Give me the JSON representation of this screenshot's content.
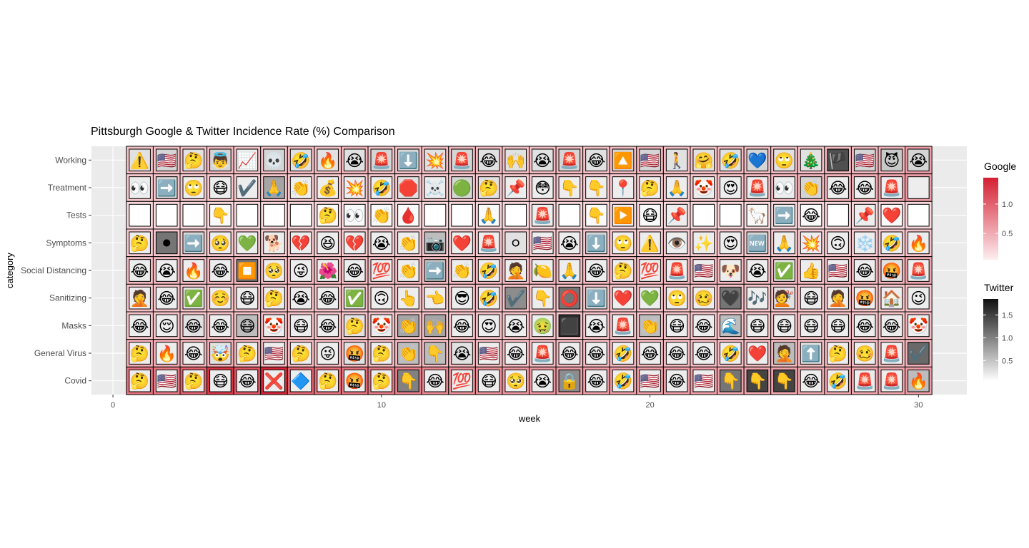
{
  "chart_data": {
    "type": "heatmap",
    "title": "Pittsburgh Google & Twitter Incidence Rate (%) Comparison",
    "xlabel": "week",
    "ylabel": "category",
    "xlim": [
      -0.8,
      31.8
    ],
    "xticks": [
      0,
      10,
      20,
      30
    ],
    "grid": true,
    "categories": [
      "Working",
      "Treatment",
      "Tests",
      "Symptoms",
      "Social Distancing",
      "Sanitizing",
      "Masks",
      "General Virus",
      "Covid"
    ],
    "weeks": [
      1,
      2,
      3,
      4,
      5,
      6,
      7,
      8,
      9,
      10,
      11,
      12,
      13,
      14,
      15,
      16,
      17,
      18,
      19,
      20,
      21,
      22,
      23,
      24,
      25,
      26,
      27,
      28,
      29,
      30
    ],
    "legends": [
      {
        "title": "Google",
        "type": "fill",
        "range": [
          0.05,
          1.45
        ],
        "ticks": [
          "0.5",
          "1.0"
        ],
        "tick_values": [
          0.5,
          1.0
        ],
        "low_color": "#fdeef0",
        "high_color": "#d41f31",
        "position": "right-top"
      },
      {
        "title": "Twitter",
        "type": "tile-shade",
        "range": [
          0.05,
          1.85
        ],
        "ticks": [
          "0.5",
          "1.0",
          "1.5"
        ],
        "tick_values": [
          0.5,
          1.0,
          1.5
        ],
        "low_color": "#ffffff",
        "high_color": "#111111",
        "position": "right-bottom"
      }
    ],
    "google_values": [
      [
        0.35,
        0.38,
        0.36,
        0.42,
        0.35,
        0.36,
        0.4,
        0.38,
        0.45,
        0.36,
        0.36,
        0.38,
        0.42,
        0.4,
        0.37,
        0.38,
        0.4,
        0.36,
        0.4,
        0.45,
        0.38,
        0.36,
        0.4,
        0.38,
        0.38,
        0.36,
        0.4,
        0.42,
        0.45,
        0.6
      ],
      [
        0.3,
        0.32,
        0.3,
        0.3,
        0.3,
        0.32,
        0.3,
        0.3,
        0.3,
        0.32,
        0.3,
        0.3,
        0.3,
        0.3,
        0.3,
        0.3,
        0.32,
        0.3,
        0.3,
        0.3,
        0.3,
        0.3,
        0.35,
        0.4,
        0.42,
        0.45,
        0.45,
        0.5,
        0.55,
        0.6
      ],
      [
        0.2,
        0.2,
        0.2,
        0.2,
        0.2,
        0.2,
        0.2,
        0.2,
        0.2,
        0.2,
        0.2,
        0.2,
        0.2,
        0.2,
        0.2,
        0.2,
        0.2,
        0.2,
        0.2,
        0.2,
        0.2,
        0.2,
        0.2,
        0.2,
        0.2,
        0.2,
        0.2,
        0.2,
        0.2,
        0.2
      ],
      [
        0.3,
        0.32,
        0.3,
        0.3,
        0.3,
        0.3,
        0.3,
        0.3,
        0.3,
        0.3,
        0.3,
        0.3,
        0.3,
        0.3,
        0.3,
        0.3,
        0.3,
        0.3,
        0.3,
        0.3,
        0.3,
        0.3,
        0.3,
        0.3,
        0.3,
        0.3,
        0.3,
        0.3,
        0.3,
        0.35
      ],
      [
        0.4,
        0.42,
        0.4,
        0.42,
        0.4,
        0.4,
        0.4,
        0.4,
        0.4,
        0.4,
        0.4,
        0.4,
        0.4,
        0.4,
        0.4,
        0.4,
        0.4,
        0.4,
        0.4,
        0.4,
        0.45,
        0.42,
        0.4,
        0.4,
        0.42,
        0.4,
        0.4,
        0.42,
        0.45,
        0.55
      ],
      [
        0.35,
        0.35,
        0.35,
        0.35,
        0.35,
        0.35,
        0.35,
        0.35,
        0.35,
        0.35,
        0.35,
        0.35,
        0.35,
        0.35,
        0.35,
        0.35,
        0.35,
        0.35,
        0.35,
        0.35,
        0.35,
        0.35,
        0.35,
        0.35,
        0.35,
        0.35,
        0.35,
        0.35,
        0.35,
        0.35
      ],
      [
        0.35,
        0.35,
        0.35,
        0.35,
        0.35,
        0.4,
        0.35,
        0.35,
        0.35,
        0.35,
        0.35,
        0.35,
        0.35,
        0.35,
        0.35,
        0.35,
        0.35,
        0.35,
        0.35,
        0.35,
        0.35,
        0.35,
        0.35,
        0.35,
        0.35,
        0.35,
        0.35,
        0.35,
        0.35,
        0.4
      ],
      [
        0.5,
        0.5,
        0.45,
        0.5,
        0.45,
        0.42,
        0.4,
        0.4,
        0.4,
        0.4,
        0.4,
        0.4,
        0.4,
        0.4,
        0.4,
        0.4,
        0.4,
        0.4,
        0.4,
        0.4,
        0.4,
        0.4,
        0.4,
        0.4,
        0.4,
        0.4,
        0.4,
        0.4,
        0.4,
        0.45
      ],
      [
        0.9,
        0.85,
        1.0,
        1.3,
        1.1,
        1.4,
        1.0,
        0.9,
        0.9,
        0.85,
        0.8,
        0.75,
        0.7,
        0.7,
        0.65,
        0.65,
        0.6,
        0.6,
        0.6,
        0.6,
        0.6,
        0.6,
        0.55,
        0.55,
        0.55,
        0.55,
        0.55,
        0.55,
        0.55,
        0.6
      ]
    ],
    "twitter_values": [
      [
        0.3,
        0.4,
        0.3,
        0.4,
        0.2,
        0.4,
        0.3,
        0.3,
        0.3,
        0.4,
        0.4,
        0.3,
        0.4,
        0.3,
        0.3,
        0.3,
        0.4,
        0.3,
        0.4,
        0.4,
        0.3,
        0.3,
        0.3,
        0.4,
        0.3,
        0.3,
        1.5,
        0.4,
        0.5,
        0.4
      ],
      [
        0.2,
        0.4,
        0.2,
        0.2,
        0.2,
        0.8,
        0.2,
        0.2,
        0.2,
        0.2,
        0.3,
        0.2,
        0.4,
        0.3,
        0.2,
        0.2,
        0.2,
        0.2,
        0.2,
        0.2,
        0.2,
        0.2,
        0.2,
        0.2,
        0.2,
        0.4,
        0.2,
        0.2,
        0.2,
        0.2
      ],
      [
        0.05,
        0.05,
        0.05,
        0.1,
        0.05,
        0.05,
        0.05,
        0.1,
        0.1,
        0.1,
        0.1,
        0.05,
        0.05,
        0.1,
        0.05,
        0.2,
        0.05,
        0.1,
        0.2,
        0.1,
        0.2,
        0.05,
        0.05,
        0.1,
        0.2,
        0.1,
        0.05,
        0.2,
        0.1,
        0.05
      ],
      [
        0.2,
        1.2,
        0.4,
        0.2,
        0.2,
        0.2,
        0.2,
        0.2,
        0.2,
        0.2,
        0.2,
        0.6,
        0.2,
        0.2,
        0.3,
        0.2,
        0.2,
        0.4,
        0.2,
        0.2,
        0.2,
        0.2,
        0.2,
        0.4,
        0.2,
        0.2,
        0.2,
        0.2,
        0.2,
        0.2
      ],
      [
        0.2,
        0.2,
        0.2,
        0.2,
        1.2,
        0.2,
        0.2,
        0.2,
        0.2,
        0.2,
        0.2,
        0.6,
        0.2,
        0.2,
        0.2,
        0.2,
        0.2,
        0.2,
        0.2,
        0.2,
        0.2,
        0.2,
        0.2,
        0.2,
        0.3,
        0.2,
        0.2,
        0.2,
        0.3,
        0.2
      ],
      [
        0.2,
        0.2,
        0.3,
        0.2,
        0.2,
        0.2,
        0.2,
        0.2,
        0.3,
        0.2,
        0.2,
        0.2,
        0.2,
        0.2,
        1.0,
        0.2,
        1.2,
        0.4,
        0.2,
        0.2,
        0.2,
        0.2,
        1.2,
        0.2,
        0.3,
        0.2,
        0.2,
        0.2,
        0.2,
        0.2
      ],
      [
        0.2,
        0.2,
        0.3,
        0.2,
        0.6,
        0.2,
        0.2,
        0.2,
        0.3,
        0.2,
        0.8,
        0.8,
        0.2,
        0.2,
        0.2,
        0.2,
        1.8,
        0.2,
        0.2,
        0.6,
        0.2,
        0.2,
        0.6,
        0.2,
        0.2,
        0.2,
        0.2,
        0.2,
        0.2,
        0.2
      ],
      [
        0.2,
        0.2,
        0.2,
        0.3,
        0.2,
        0.2,
        0.2,
        0.2,
        0.3,
        0.2,
        0.6,
        0.6,
        0.3,
        0.2,
        0.2,
        0.2,
        0.2,
        0.2,
        0.2,
        0.2,
        0.2,
        0.2,
        0.2,
        0.2,
        0.6,
        0.3,
        0.2,
        0.2,
        0.2,
        1.3
      ],
      [
        0.2,
        0.2,
        0.2,
        0.2,
        0.2,
        0.2,
        0.2,
        0.2,
        0.2,
        0.2,
        1.1,
        0.2,
        0.2,
        0.2,
        0.2,
        0.2,
        1.0,
        0.2,
        0.2,
        0.2,
        0.2,
        0.2,
        1.2,
        1.6,
        1.6,
        0.2,
        0.2,
        0.2,
        0.2,
        0.6
      ]
    ],
    "emoji_grid": [
      [
        "⚠️",
        "🇺🇸",
        "🤔",
        "👼",
        "📈",
        "💀",
        "🤣",
        "🔥",
        "😭",
        "🚨",
        "⬇️",
        "💥",
        "🚨",
        "😂",
        "🙌",
        "😭",
        "🚨",
        "😂",
        "🔼",
        "🇺🇸",
        "🚶",
        "🤗",
        "🤣",
        "💙",
        "🙄",
        "🎄",
        "🏴",
        "🇺🇸",
        "😈",
        "😭"
      ],
      [
        "👀",
        "➡️",
        "🙄",
        "😷",
        "✔️",
        "🙏",
        "👏",
        "💰",
        "💥",
        "🤣",
        "🛑",
        "☠️",
        "🟢",
        "🤔",
        "📌",
        "😳",
        "👇",
        "👇",
        "📍",
        "🤔",
        "🙏",
        "🤡",
        "😍",
        "🚨",
        "👀",
        "👏",
        "😂",
        "😂",
        "🚨",
        ""
      ],
      [
        "",
        "",
        "",
        "👇",
        "",
        "",
        "",
        "🤔",
        "👀",
        "👏",
        "🩸",
        "",
        "",
        "🙏",
        "",
        "🚨",
        "",
        "👇",
        "▶️",
        "😷",
        "📌",
        "",
        "",
        "🦙",
        "➡️",
        "😂",
        "",
        "📌",
        "❤️",
        ""
      ],
      [
        "🤔",
        "⚫",
        "➡️",
        "🥺",
        "💚",
        "🐕",
        "💔",
        "😆",
        "💔",
        "😭",
        "👏",
        "📷",
        "❤️",
        "🚨",
        "⚪",
        "🇺🇸",
        "😭",
        "⬇️",
        "🙄",
        "⚠️",
        "👁️",
        "✨",
        "😍",
        "🆕",
        "🙏",
        "💥",
        "🙃",
        "❄️",
        "🤣",
        "🔥"
      ],
      [
        "😂",
        "😭",
        "🔥",
        "😂",
        "⏹️",
        "🥺",
        "😜",
        "🌺",
        "😂",
        "💯",
        "👏",
        "➡️",
        "👏",
        "🤣",
        "🤦",
        "🍋",
        "🙏",
        "😂",
        "🤔",
        "💯",
        "🚨",
        "🇺🇸",
        "🐶",
        "😭",
        "✅",
        "👍",
        "🇺🇸",
        "😂",
        "🤬",
        "🚨"
      ],
      [
        "🤦",
        "😂",
        "✅",
        "☺️",
        "😷",
        "🤔",
        "😭",
        "😂",
        "✅",
        "🙃",
        "👆",
        "👈",
        "😎",
        "🤣",
        "✔️",
        "👇",
        "⭕",
        "⬇️",
        "❤️",
        "💚",
        "🙄",
        "🥴",
        "🖤",
        "🎶",
        "💇",
        "😷",
        "🤦",
        "🤬",
        "🏠",
        "😉"
      ],
      [
        "😂",
        "😌",
        "😂",
        "😂",
        "😷",
        "🤡",
        "😷",
        "😂",
        "🤔",
        "🤡",
        "👏",
        "🙌",
        "😂",
        "😍",
        "😭",
        "🤢",
        "⬛",
        "😭",
        "🚨",
        "👏",
        "😷",
        "😂",
        "🌊",
        "😷",
        "😷",
        "😷",
        "😷",
        "😂",
        "😂",
        "🤡"
      ],
      [
        "🤔",
        "🔥",
        "😂",
        "🤯",
        "🤔",
        "🇺🇸",
        "🤔",
        "😜",
        "🤬",
        "🤔",
        "👏",
        "👇",
        "😭",
        "🇺🇸",
        "😂",
        "🚨",
        "😂",
        "😂",
        "🤣",
        "😂",
        "😂",
        "😂",
        "🤣",
        "❤️",
        "🤦",
        "⬆️",
        "🤔",
        "🥴",
        "🚨",
        "✔️"
      ],
      [
        "🤔",
        "🇺🇸",
        "🤔",
        "😷",
        "😂",
        "❌",
        "🔷",
        "🤔",
        "🤬",
        "🤔",
        "👇",
        "😂",
        "💯",
        "😷",
        "🥺",
        "😭",
        "🔒",
        "😂",
        "🤣",
        "🇺🇸",
        "😂",
        "🇺🇸",
        "👇",
        "👇",
        "👇",
        "😂",
        "🤣",
        "🚨",
        "🚨",
        "🔥"
      ]
    ]
  }
}
